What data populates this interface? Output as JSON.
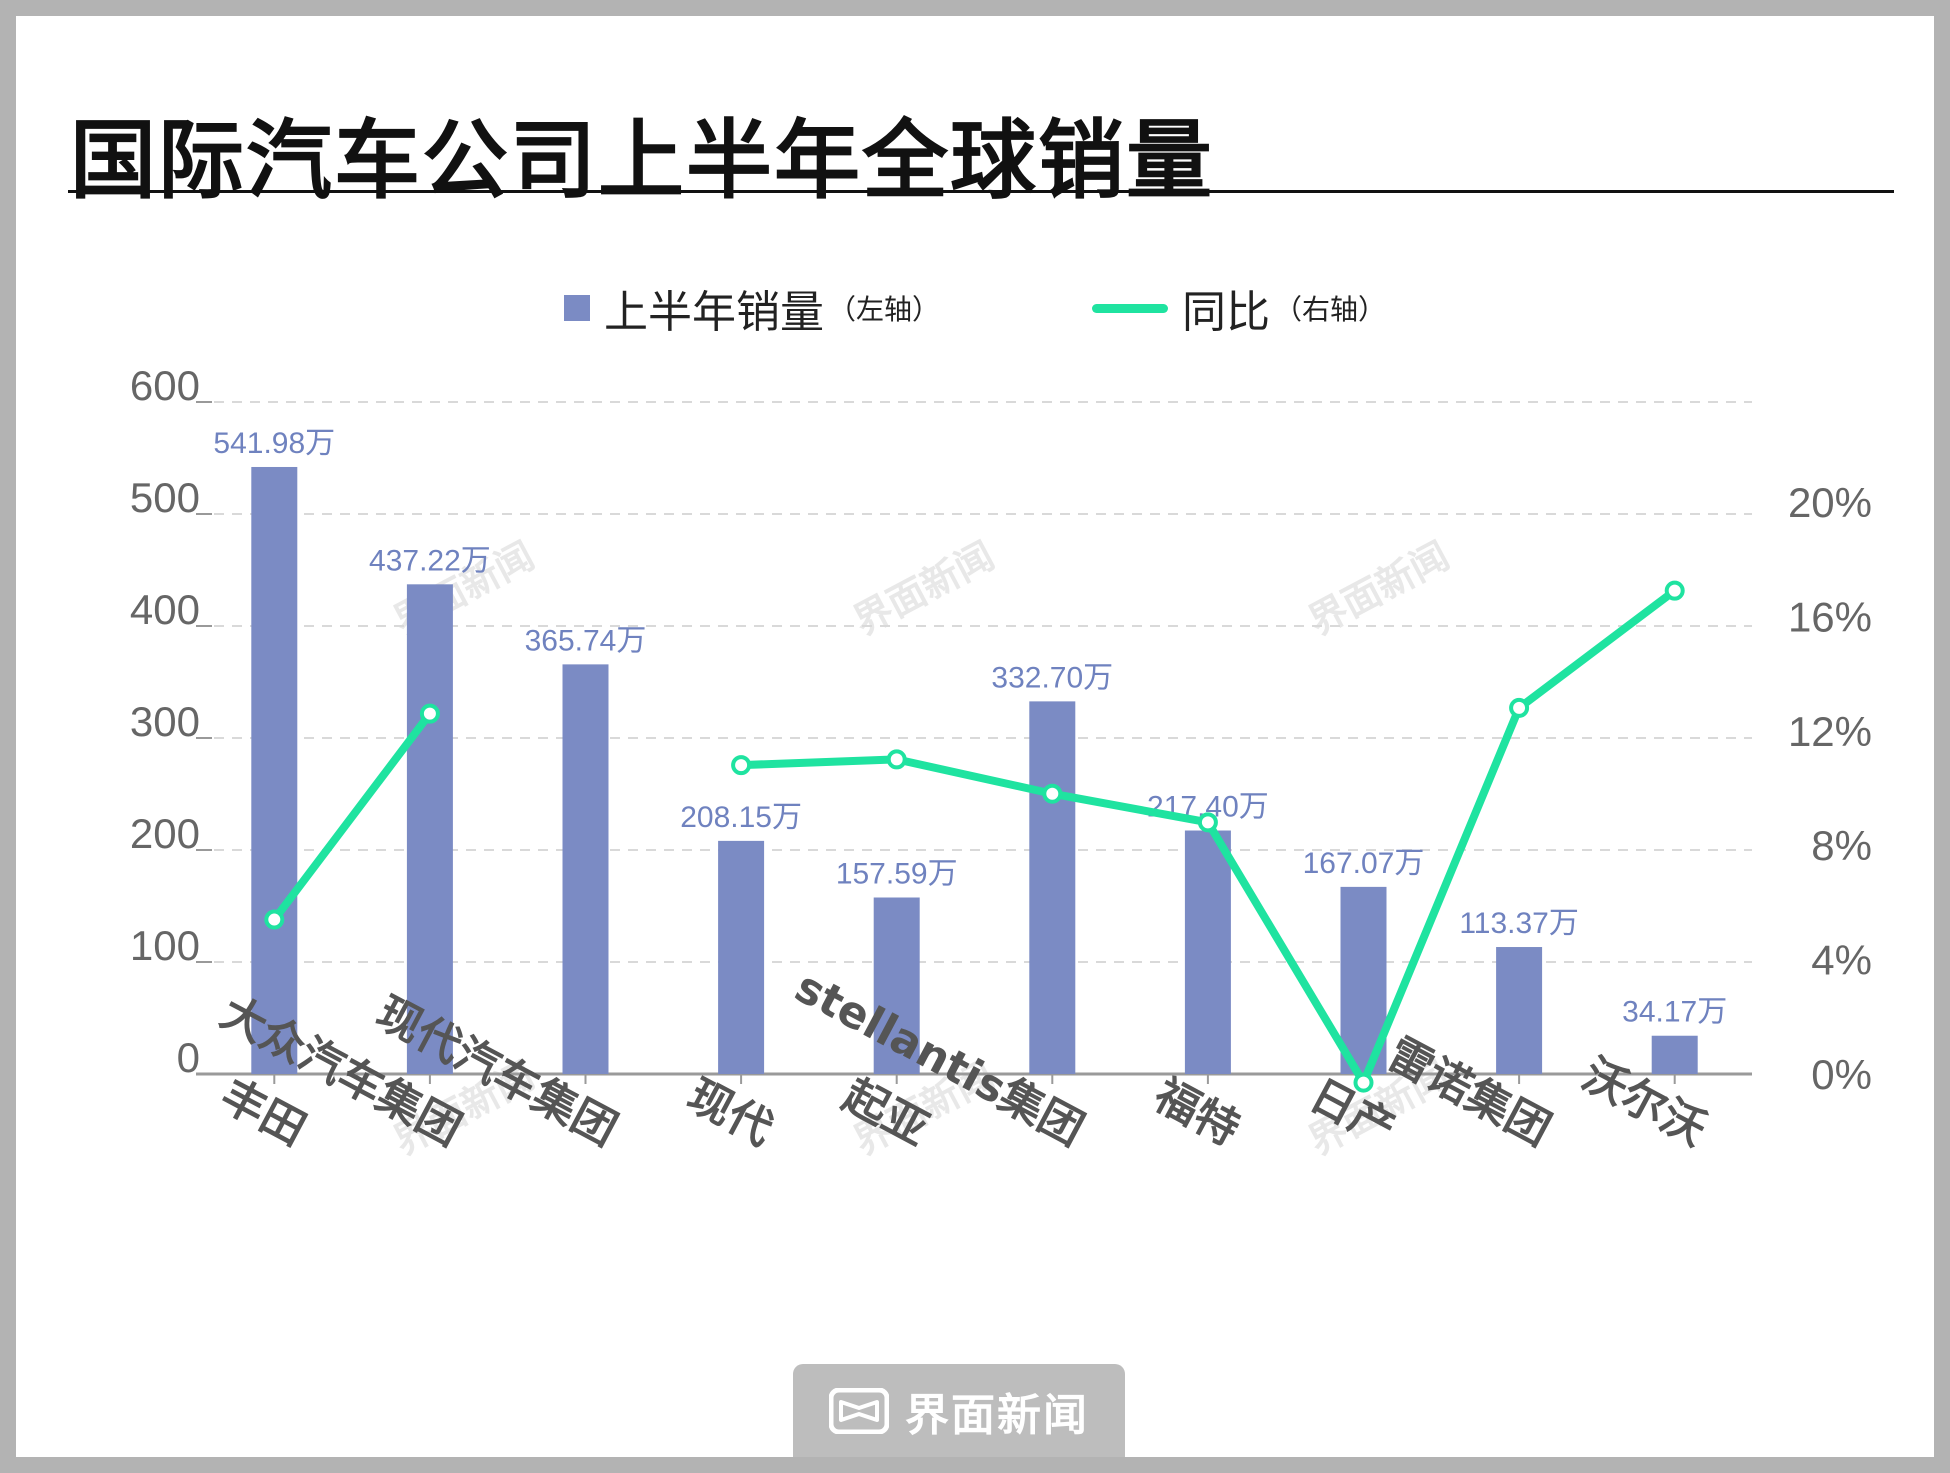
{
  "title": "国际汽车公司上半年全球销量",
  "legend": {
    "bar_label": "上半年销量",
    "bar_note": "（左轴）",
    "line_label": "同比",
    "line_note": "（右轴）"
  },
  "watermark": "界面新闻",
  "footer": {
    "brand": "界面新闻"
  },
  "colors": {
    "bar": "#7b8bc4",
    "line": "#1fe3a0",
    "bar_label": "#6f82bf",
    "grid": "#d9d9d9",
    "axis_text": "#666666"
  },
  "chart_data": {
    "type": "bar",
    "categories": [
      "丰田",
      "大众汽车集团",
      "现代汽车集团",
      "现代",
      "起亚",
      "stellantis集团",
      "福特",
      "日产",
      "雷诺集团",
      "沃尔沃"
    ],
    "series": [
      {
        "name": "上半年销量",
        "type": "bar",
        "axis": "left",
        "values": [
          541.98,
          437.22,
          365.74,
          208.15,
          157.59,
          332.7,
          217.4,
          167.07,
          113.37,
          34.17
        ],
        "data_labels": [
          "541.98万",
          "437.22万",
          "365.74万",
          "208.15万",
          "157.59万",
          "332.70万",
          "217.40万",
          "167.07万",
          "113.37万",
          "34.17万"
        ]
      },
      {
        "name": "同比",
        "type": "line",
        "axis": "right",
        "unit": "%",
        "values": [
          5.4,
          12.6,
          null,
          10.8,
          11.0,
          9.8,
          8.8,
          -0.3,
          12.8,
          16.9
        ]
      }
    ],
    "left_axis": {
      "ticks": [
        "0",
        "100",
        "200",
        "300",
        "400",
        "500",
        "600"
      ],
      "ylim": [
        0,
        600
      ]
    },
    "right_axis": {
      "ticks": [
        "0%",
        "4%",
        "8%",
        "12%",
        "16%",
        "20%"
      ],
      "ylim": [
        0,
        20
      ]
    },
    "grid": true,
    "legend_position": "top-center"
  }
}
